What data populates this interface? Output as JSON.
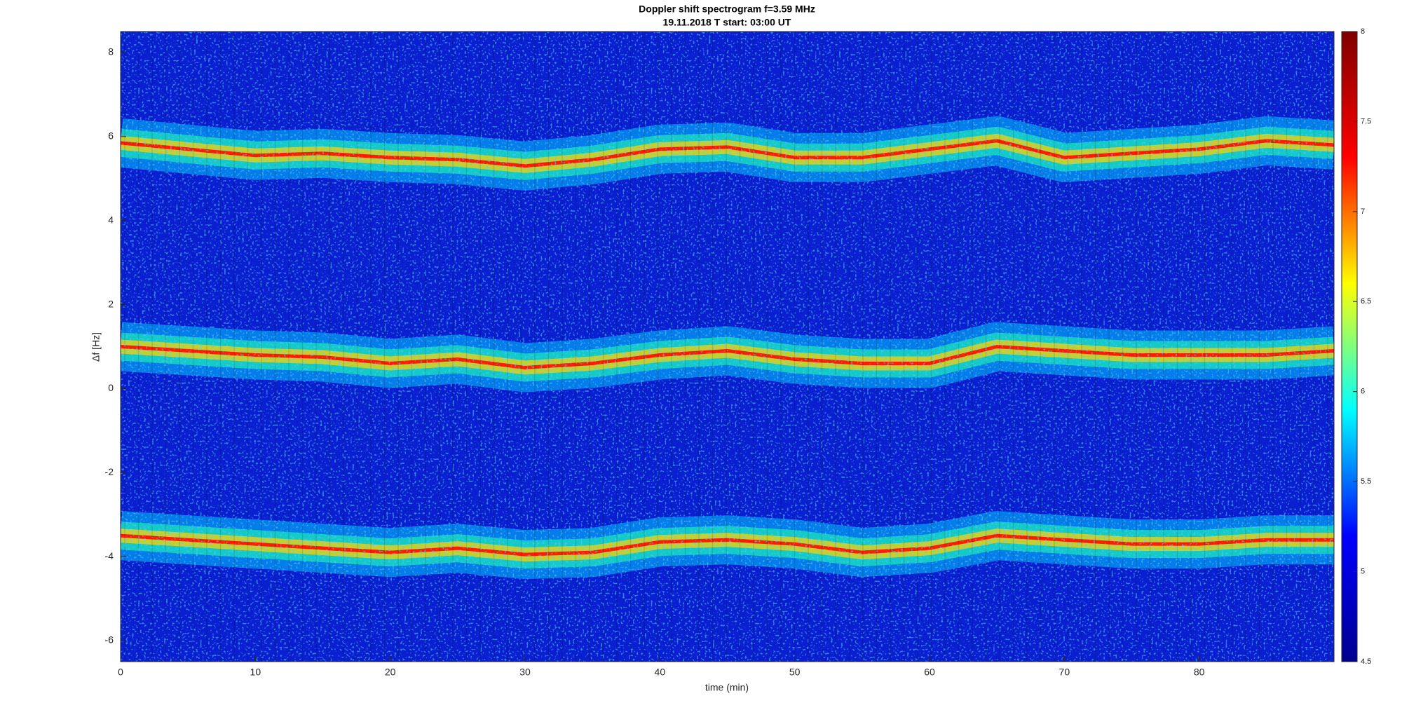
{
  "chart_data": {
    "type": "spectrogram",
    "title": "Doppler shift spectrogram f=3.59 MHz",
    "subtitle": "19.11.2018   T start: 03:00 UT",
    "xlabel": "time (min)",
    "ylabel": "Δf [Hz]",
    "xlim": [
      0,
      90
    ],
    "xticks": [
      0,
      10,
      20,
      30,
      40,
      50,
      60,
      70,
      80
    ],
    "ylim": [
      -6.5,
      8.5
    ],
    "yticks": [
      -6,
      -4,
      -2,
      0,
      2,
      4,
      6,
      8
    ],
    "x": [
      0,
      5,
      10,
      15,
      20,
      25,
      30,
      35,
      40,
      45,
      50,
      55,
      60,
      65,
      70,
      75,
      80,
      85,
      90
    ],
    "series": [
      {
        "color": "#ff1a00",
        "values": [
          5.85,
          5.7,
          5.55,
          5.6,
          5.5,
          5.45,
          5.3,
          5.45,
          5.7,
          5.75,
          5.5,
          5.5,
          5.7,
          5.9,
          5.5,
          5.6,
          5.7,
          5.9,
          5.8
        ]
      },
      {
        "color": "#ff1a00",
        "values": [
          1.0,
          0.9,
          0.8,
          0.75,
          0.6,
          0.7,
          0.5,
          0.6,
          0.8,
          0.9,
          0.7,
          0.6,
          0.6,
          1.0,
          0.9,
          0.8,
          0.8,
          0.8,
          0.9
        ]
      },
      {
        "color": "#ff1a00",
        "values": [
          -3.5,
          -3.6,
          -3.7,
          -3.8,
          -3.9,
          -3.8,
          -3.95,
          -3.9,
          -3.65,
          -3.6,
          -3.7,
          -3.9,
          -3.8,
          -3.5,
          -3.6,
          -3.7,
          -3.7,
          -3.6,
          -3.6
        ]
      }
    ],
    "colorbar": {
      "lim": [
        4.5,
        8
      ],
      "ticks": [
        4.5,
        5,
        5.5,
        6,
        6.5,
        7,
        7.5,
        8
      ],
      "colors": [
        "#00008f",
        "#0000ff",
        "#00ffff",
        "#ffff00",
        "#ff0000",
        "#800000"
      ]
    }
  }
}
